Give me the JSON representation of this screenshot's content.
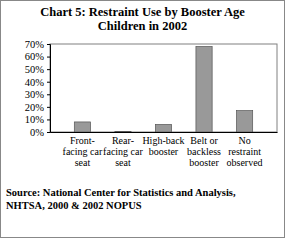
{
  "chart_data": {
    "type": "bar",
    "title": "Chart 5: Restraint Use by Booster Age Children in 2002",
    "categories": [
      "Front-facing car seat",
      "Rear-facing car seat",
      "High-back booster",
      "Belt or backless booster",
      "No restraint observed"
    ],
    "values": [
      8,
      0.5,
      6,
      68,
      17
    ],
    "color": "#999999",
    "ylim": [
      0,
      70
    ],
    "yticks": [
      {
        "value": 0,
        "label": "0%"
      },
      {
        "value": 10,
        "label": "10%"
      },
      {
        "value": 20,
        "label": "20%"
      },
      {
        "value": 30,
        "label": "30%"
      },
      {
        "value": 40,
        "label": "40%"
      },
      {
        "value": 50,
        "label": "50%"
      },
      {
        "value": 60,
        "label": "60%"
      },
      {
        "value": 70,
        "label": "70%"
      }
    ],
    "grid": false,
    "source": "Source: National Center for Statistics and Analysis, NHTSA, 2000 & 2002 NOPUS"
  }
}
